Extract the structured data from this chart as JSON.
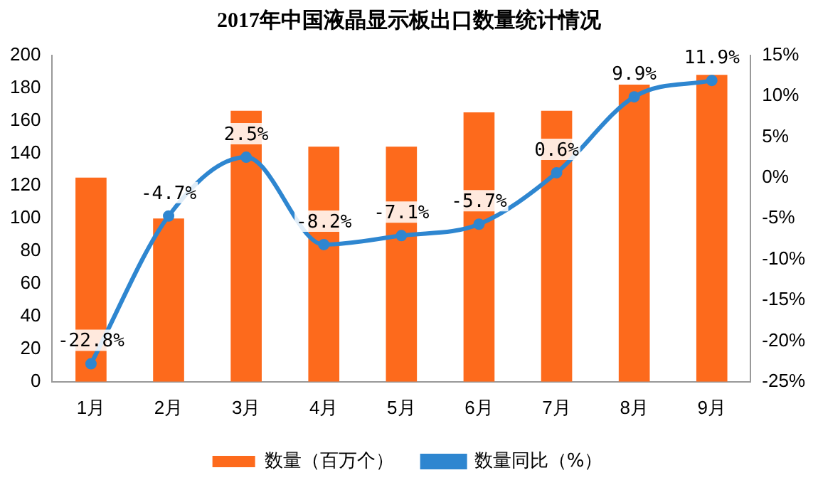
{
  "chart_data": {
    "type": "bar",
    "title": "2017年中国液晶显示板出口数量统计情况",
    "categories": [
      "1月",
      "2月",
      "3月",
      "4月",
      "5月",
      "6月",
      "7月",
      "8月",
      "9月"
    ],
    "series": [
      {
        "name": "数量（百万个）",
        "color": "#fd6a1c",
        "values": [
          125,
          100,
          166,
          144,
          144,
          165,
          166,
          182,
          188
        ]
      },
      {
        "name": "数量同比（%）",
        "type": "line",
        "axis": "y2",
        "color": "#2e86d0",
        "marker": "circle",
        "values": [
          -22.8,
          -4.7,
          2.5,
          -8.2,
          -7.1,
          -5.7,
          0.6,
          9.9,
          11.9
        ],
        "value_labels": [
          "-22.8%",
          "-4.7%",
          "2.5%",
          "-8.2%",
          "-7.1%",
          "-5.7%",
          "0.6%",
          "9.9%",
          "11.9%"
        ]
      }
    ],
    "ylim": [
      0,
      200
    ],
    "yticks": [
      0,
      20,
      40,
      60,
      80,
      100,
      120,
      140,
      160,
      180,
      200
    ],
    "y2lim": [
      -25,
      15
    ],
    "y2ticks": [
      {
        "value": -25,
        "label": "-25%"
      },
      {
        "value": -20,
        "label": "-20%"
      },
      {
        "value": -15,
        "label": "-15%"
      },
      {
        "value": -10,
        "label": "-10%"
      },
      {
        "value": -5,
        "label": "-5%"
      },
      {
        "value": 0,
        "label": "0%"
      },
      {
        "value": 5,
        "label": "5%"
      },
      {
        "value": 10,
        "label": "10%"
      },
      {
        "value": 15,
        "label": "15%"
      }
    ],
    "grid": false,
    "legend": "bottom"
  }
}
